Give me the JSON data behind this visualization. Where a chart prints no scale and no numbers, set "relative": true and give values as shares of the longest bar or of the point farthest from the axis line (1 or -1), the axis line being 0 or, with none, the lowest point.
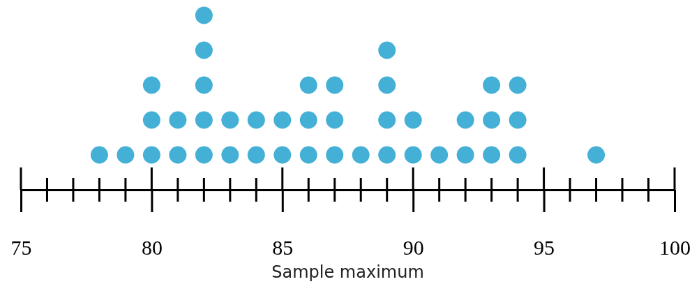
{
  "chart_data": {
    "type": "scatter",
    "xlabel": "Sample maximum",
    "x": [
      78,
      79,
      80,
      80,
      80,
      81,
      81,
      82,
      82,
      82,
      82,
      82,
      83,
      83,
      84,
      84,
      85,
      85,
      86,
      86,
      86,
      87,
      87,
      87,
      88,
      89,
      89,
      89,
      89,
      90,
      90,
      91,
      92,
      92,
      93,
      93,
      93,
      94,
      94,
      94,
      97
    ],
    "values": [
      0.2,
      0.2,
      0.2,
      0.4,
      0.6,
      0.2,
      0.4,
      0.2,
      0.4,
      0.6,
      0.8,
      1,
      0.2,
      0.4,
      0.2,
      0.4,
      0.2,
      0.4,
      0.2,
      0.4,
      0.6,
      0.2,
      0.4,
      0.6,
      0.2,
      0.2,
      0.4,
      0.6,
      0.8,
      0.2,
      0.4,
      0.2,
      0.2,
      0.4,
      0.2,
      0.4,
      0.6,
      0.2,
      0.4,
      0.6,
      0.2
    ],
    "relative": true,
    "color": "#45b0d6",
    "marker": "circle",
    "tick_labels": "x",
    "grid": false,
    "xlim": [
      75,
      100
    ],
    "xticks": [
      75,
      80,
      85,
      90,
      95,
      100
    ]
  }
}
